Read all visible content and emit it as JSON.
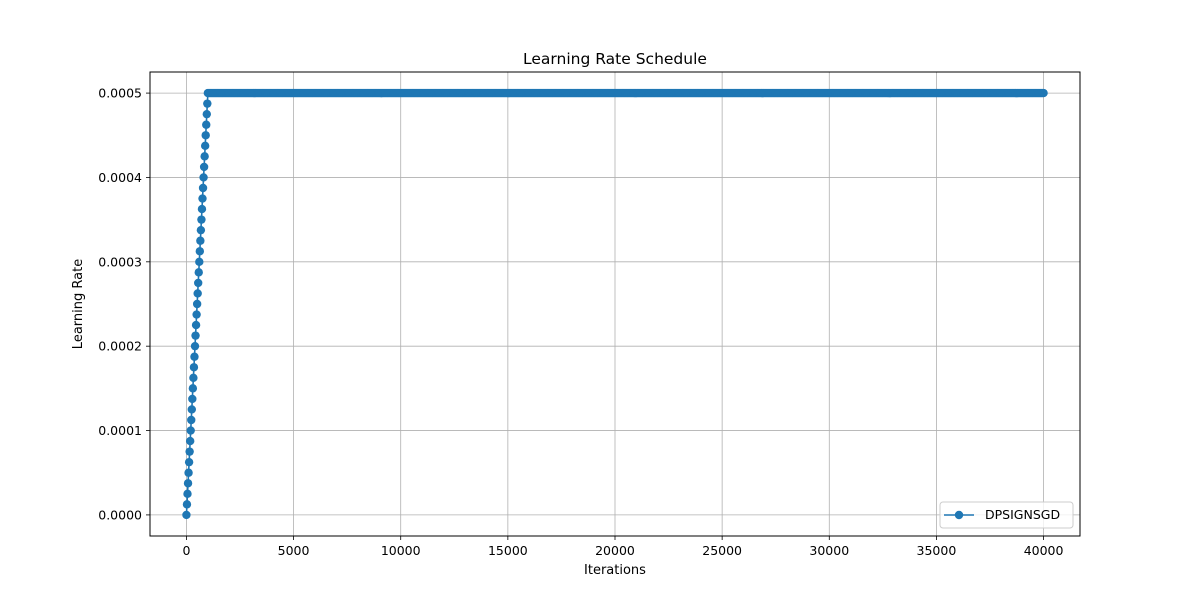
{
  "chart_data": {
    "type": "line",
    "title": "Learning Rate Schedule",
    "xlabel": "Iterations",
    "ylabel": "Learning Rate",
    "xlim": [
      -1700,
      41700
    ],
    "ylim": [
      -2.5e-05,
      0.000525
    ],
    "xticks": [
      0,
      5000,
      10000,
      15000,
      20000,
      25000,
      30000,
      35000,
      40000
    ],
    "xtick_labels": [
      "0",
      "5000",
      "10000",
      "15000",
      "20000",
      "25000",
      "30000",
      "35000",
      "40000"
    ],
    "yticks": [
      0,
      0.0001,
      0.0002,
      0.0003,
      0.0004,
      0.0005
    ],
    "ytick_labels": [
      "0.0000",
      "0.0001",
      "0.0002",
      "0.0003",
      "0.0004",
      "0.0005"
    ],
    "grid": true,
    "legend_position": "lower-right",
    "series": [
      {
        "name": "DPSIGNSGD",
        "color": "#1f77b4",
        "marker": "circle",
        "warmup_end_iteration": 1000,
        "final_iteration": 40000,
        "peak_value": 0.0005,
        "initial_value": 0.0
      }
    ]
  }
}
